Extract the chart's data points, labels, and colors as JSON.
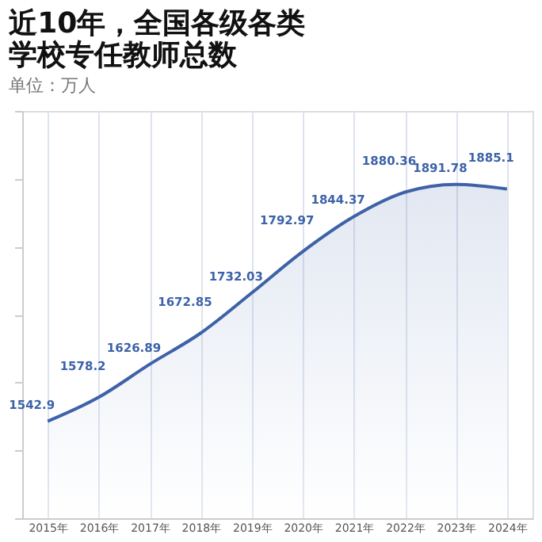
{
  "chart_data": {
    "type": "area",
    "title": [
      "近10年，全国各级各类",
      "学校专任教师总数"
    ],
    "subtitle": "单位：万人",
    "categories": [
      "2015年",
      "2016年",
      "2017年",
      "2018年",
      "2019年",
      "2020年",
      "2021年",
      "2022年",
      "2023年",
      "2024年"
    ],
    "series": [
      {
        "color": "#3d62a8",
        "values": [
          1542.9,
          1578.2,
          1626.89,
          1672.85,
          1732.03,
          1792.97,
          1844.37,
          1880.36,
          1891.78,
          1885.1
        ]
      }
    ],
    "ylim": [
      1400,
      2000
    ],
    "yticks": [
      {
        "value": 1400,
        "label": null
      },
      {
        "value": 1500,
        "label": null
      },
      {
        "value": 1600,
        "label": null
      },
      {
        "value": 1700,
        "label": null
      },
      {
        "value": 1800,
        "label": null
      },
      {
        "value": 1900,
        "label": null
      },
      {
        "value": 2000,
        "label": null
      }
    ],
    "tick_labels": "x",
    "grid": "x",
    "data_labels": true
  }
}
